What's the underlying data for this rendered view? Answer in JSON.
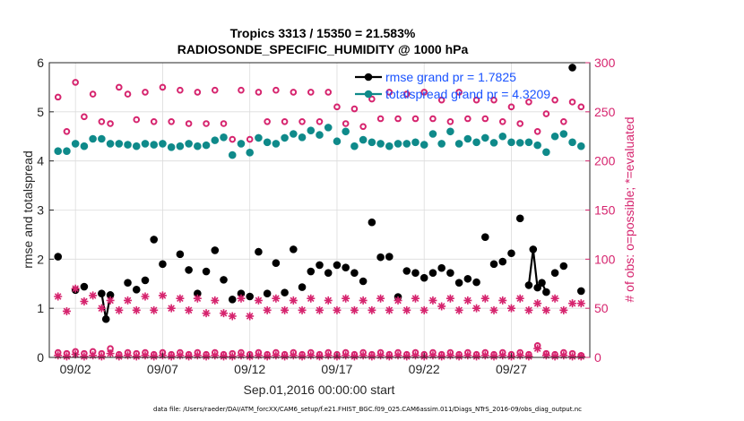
{
  "chart_data": {
    "type": "line",
    "title": "Tropics 3313 / 15350 = 21.583%",
    "subtitle": "RADIOSONDE_SPECIFIC_HUMIDITY @ 1000 hPa",
    "xlabel": "Sep.01,2016 00:00:00 start",
    "ylabel_left": "rmse and totalspread",
    "ylabel_right": "# of obs: o=possible; *=evaluated",
    "xlim": [
      0.5,
      31.5
    ],
    "ylim_left": [
      0,
      6
    ],
    "ylim_right": [
      0,
      300
    ],
    "yticks_left": [
      0,
      1,
      2,
      3,
      4,
      5,
      6
    ],
    "yticks_right": [
      0,
      50,
      100,
      150,
      200,
      250,
      300
    ],
    "x_ticks": [
      {
        "x": 2.0,
        "label": "09/02"
      },
      {
        "x": 7.0,
        "label": "09/07"
      },
      {
        "x": 12.0,
        "label": "09/12"
      },
      {
        "x": 17.0,
        "label": "09/17"
      },
      {
        "x": 22.0,
        "label": "09/22"
      },
      {
        "x": 27.0,
        "label": "09/27"
      }
    ],
    "legend": {
      "position": "top-right",
      "entries": [
        "rmse grand pr = 1.7825",
        "totalspread grand pr = 4.3209"
      ]
    },
    "colors": {
      "rmse": "#000000",
      "totalspread": "#0f8a8a",
      "obs": "#d6246e",
      "grid": "#dcdcdc",
      "legend_text": "#1a53ff"
    },
    "series": [
      {
        "name": "rmse",
        "axis": "left",
        "style": "line+dots",
        "x": [
          1,
          2,
          2.5,
          3.5,
          3.75,
          4,
          5,
          5.5,
          6,
          6.5,
          7,
          8,
          8.5,
          9,
          9.5,
          10,
          10.5,
          11,
          11.5,
          12,
          12.5,
          13,
          13.5,
          14,
          14.5,
          15,
          15.5,
          16,
          16.5,
          17,
          17.5,
          18,
          18.5,
          19,
          19.5,
          20,
          20.5,
          21,
          21.5,
          22,
          22.5,
          23,
          23.5,
          24,
          24.5,
          25,
          25.5,
          26,
          26.5,
          27,
          27.5,
          28,
          28.25,
          28.5,
          28.75,
          29,
          29.5,
          30,
          30.5,
          31
        ],
        "values": [
          2.05,
          1.37,
          1.44,
          1.3,
          0.78,
          1.27,
          1.52,
          1.38,
          1.57,
          2.4,
          1.9,
          2.1,
          1.78,
          1.3,
          1.75,
          2.18,
          1.58,
          1.18,
          1.3,
          1.24,
          2.15,
          1.3,
          1.92,
          1.32,
          2.2,
          1.43,
          1.75,
          1.88,
          1.72,
          1.88,
          1.83,
          1.72,
          1.55,
          2.75,
          2.04,
          2.05,
          1.23,
          1.76,
          1.72,
          1.62,
          1.72,
          1.82,
          1.72,
          1.52,
          1.6,
          1.53,
          2.45,
          1.9,
          1.95,
          2.12,
          2.83,
          1.47,
          2.2,
          1.42,
          1.52,
          1.33,
          1.72,
          1.86,
          5.9,
          1.35
        ]
      },
      {
        "name": "totalspread",
        "axis": "left",
        "style": "dots",
        "x": [
          1,
          1.5,
          2,
          2.5,
          3,
          3.5,
          4,
          4.5,
          5,
          5.5,
          6,
          6.5,
          7,
          7.5,
          8,
          8.5,
          9,
          9.5,
          10,
          10.5,
          11,
          11.5,
          12,
          12.5,
          13,
          13.5,
          14,
          14.5,
          15,
          15.5,
          16,
          16.5,
          17,
          17.5,
          18,
          18.5,
          19,
          19.5,
          20,
          20.5,
          21,
          21.5,
          22,
          22.5,
          23,
          23.5,
          24,
          24.5,
          25,
          25.5,
          26,
          26.5,
          27,
          27.5,
          28,
          28.5,
          29,
          29.5,
          30,
          30.5,
          31
        ],
        "values": [
          4.2,
          4.2,
          4.35,
          4.3,
          4.45,
          4.45,
          4.35,
          4.35,
          4.33,
          4.3,
          4.35,
          4.33,
          4.35,
          4.28,
          4.3,
          4.35,
          4.3,
          4.32,
          4.42,
          4.48,
          4.12,
          4.35,
          4.17,
          4.47,
          4.38,
          4.35,
          4.47,
          4.55,
          4.48,
          4.62,
          4.53,
          4.68,
          4.4,
          4.6,
          4.3,
          4.43,
          4.38,
          4.35,
          4.3,
          4.35,
          4.35,
          4.38,
          4.33,
          4.55,
          4.35,
          4.6,
          4.35,
          4.45,
          4.38,
          4.47,
          4.37,
          4.5,
          4.38,
          4.37,
          4.38,
          4.32,
          4.18,
          4.5,
          4.55,
          4.38,
          4.3
        ]
      },
      {
        "name": "possible",
        "axis": "right",
        "style": "open-circles",
        "x": [
          1,
          1.5,
          2,
          2.5,
          3,
          3.5,
          4,
          4.5,
          5,
          5.5,
          6,
          6.5,
          7,
          7.5,
          8,
          8.5,
          9,
          9.5,
          10,
          10.5,
          11,
          11.5,
          12,
          12.5,
          13,
          13.5,
          14,
          14.5,
          15,
          15.5,
          16,
          16.5,
          17,
          17.5,
          18,
          18.5,
          19,
          19.5,
          20,
          20.5,
          21,
          21.5,
          22,
          22.5,
          23,
          23.5,
          24,
          24.5,
          25,
          25.5,
          26,
          26.5,
          27,
          27.5,
          28,
          28.5,
          29,
          29.5,
          30,
          30.5,
          31
        ],
        "values": [
          265,
          230,
          280,
          245,
          268,
          240,
          238,
          275,
          268,
          242,
          270,
          240,
          275,
          240,
          272,
          238,
          270,
          238,
          272,
          238,
          222,
          272,
          222,
          270,
          240,
          272,
          240,
          270,
          240,
          270,
          240,
          270,
          255,
          238,
          253,
          235,
          263,
          243,
          270,
          243,
          268,
          243,
          270,
          243,
          262,
          240,
          270,
          243,
          262,
          243,
          262,
          240,
          255,
          238,
          260,
          230,
          248,
          262,
          240,
          260,
          255
        ]
      },
      {
        "name": "possible_low",
        "axis": "right",
        "style": "open-circles",
        "x": [
          1,
          1.5,
          2,
          2.5,
          3,
          3.5,
          4,
          4.5,
          5,
          5.5,
          6,
          6.5,
          7,
          7.5,
          8,
          8.5,
          9,
          9.5,
          10,
          10.5,
          11,
          11.5,
          12,
          12.5,
          13,
          13.5,
          14,
          14.5,
          15,
          15.5,
          16,
          16.5,
          17,
          17.5,
          18,
          18.5,
          19,
          19.5,
          20,
          20.5,
          21,
          21.5,
          22,
          22.5,
          23,
          23.5,
          24,
          24.5,
          25,
          25.5,
          26,
          26.5,
          27,
          27.5,
          28,
          28.5,
          29,
          29.5,
          30,
          30.5,
          31
        ],
        "values": [
          5,
          4,
          6,
          4,
          6,
          4,
          9,
          3,
          5,
          4,
          5,
          3,
          5,
          3,
          5,
          3,
          5,
          3,
          5,
          3,
          4,
          5,
          3,
          5,
          3,
          5,
          3,
          5,
          3,
          5,
          3,
          5,
          3,
          5,
          3,
          5,
          3,
          5,
          3,
          5,
          3,
          5,
          3,
          5,
          3,
          5,
          3,
          5,
          3,
          5,
          3,
          5,
          3,
          5,
          3,
          12,
          4,
          3,
          5,
          4,
          2
        ]
      },
      {
        "name": "evaluated",
        "axis": "right",
        "style": "asterisks",
        "x": [
          1,
          1.5,
          2,
          2.5,
          3,
          3.5,
          4,
          4.5,
          5,
          5.5,
          6,
          6.5,
          7,
          7.5,
          8,
          8.5,
          9,
          9.5,
          10,
          10.5,
          11,
          11.5,
          12,
          12.5,
          13,
          13.5,
          14,
          14.5,
          15,
          15.5,
          16,
          16.5,
          17,
          17.5,
          18,
          18.5,
          19,
          19.5,
          20,
          20.5,
          21,
          21.5,
          22,
          22.5,
          23,
          23.5,
          24,
          24.5,
          25,
          25.5,
          26,
          26.5,
          27,
          27.5,
          28,
          28.5,
          29,
          29.5,
          30,
          30.5,
          31
        ],
        "values": [
          62,
          47,
          70,
          57,
          63,
          50,
          58,
          48,
          58,
          48,
          62,
          48,
          63,
          50,
          60,
          48,
          60,
          45,
          58,
          45,
          42,
          60,
          42,
          58,
          48,
          60,
          48,
          58,
          48,
          60,
          48,
          58,
          48,
          60,
          48,
          58,
          48,
          60,
          48,
          58,
          48,
          60,
          48,
          58,
          52,
          60,
          48,
          58,
          50,
          60,
          48,
          58,
          50,
          60,
          48,
          55,
          48,
          60,
          48,
          55,
          55
        ]
      },
      {
        "name": "evaluated_low",
        "axis": "right",
        "style": "asterisks",
        "x": [
          1,
          1.5,
          2,
          2.5,
          3,
          3.5,
          4,
          4.5,
          5,
          5.5,
          6,
          6.5,
          7,
          7.5,
          8,
          8.5,
          9,
          9.5,
          10,
          10.5,
          11,
          11.5,
          12,
          12.5,
          13,
          13.5,
          14,
          14.5,
          15,
          15.5,
          16,
          16.5,
          17,
          17.5,
          18,
          18.5,
          19,
          19.5,
          20,
          20.5,
          21,
          21.5,
          22,
          22.5,
          23,
          23.5,
          24,
          24.5,
          25,
          25.5,
          26,
          26.5,
          27,
          27.5,
          28,
          28.5,
          29,
          29.5,
          30,
          30.5,
          31
        ],
        "values": [
          2,
          1,
          3,
          1,
          2,
          1,
          4,
          1,
          2,
          1,
          2,
          1,
          2,
          1,
          2,
          1,
          2,
          1,
          2,
          1,
          1,
          2,
          1,
          2,
          1,
          2,
          1,
          2,
          1,
          2,
          1,
          2,
          1,
          2,
          1,
          2,
          1,
          2,
          1,
          2,
          1,
          2,
          1,
          2,
          1,
          2,
          1,
          2,
          1,
          2,
          1,
          2,
          1,
          2,
          1,
          9,
          2,
          1,
          2,
          1,
          1
        ]
      }
    ]
  },
  "footer": {
    "datafile": "data file: /Users/raeder/DAI/ATM_forcXX/CAM6_setup/f.e21.FHIST_BGC.f09_025.CAM6assim.011/Diags_NTrS_2016-09/obs_diag_output.nc"
  }
}
